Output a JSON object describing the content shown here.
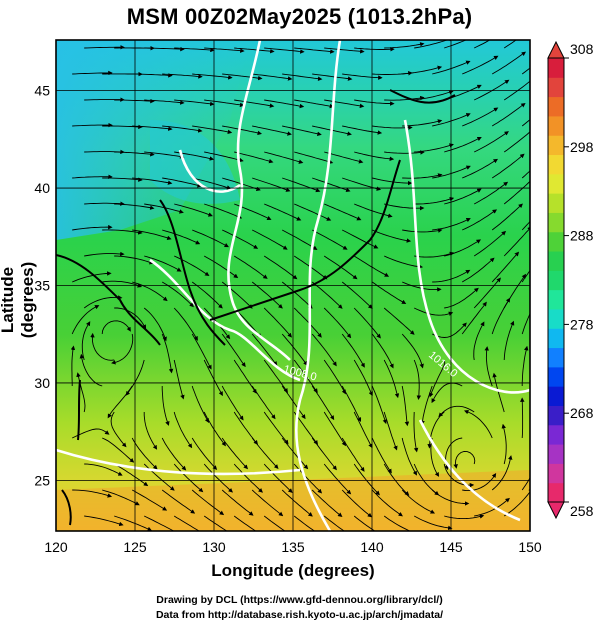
{
  "title": "MSM 00Z02May2025 (1013.2hPa)",
  "xlabel": "Longitude (degrees)",
  "ylabel": "Latitude  (degrees)",
  "credits": [
    "Drawing by DCL (https://www.gfd-dennou.org/library/dcl/)",
    "Data from http://database.rish.kyoto-u.ac.jp/arch/jmadata/"
  ],
  "map": {
    "lon_range": [
      120,
      150
    ],
    "lat_range": [
      22.4,
      47.6
    ],
    "x_ticks": [
      "120",
      "125",
      "130",
      "135",
      "140",
      "145",
      "150"
    ],
    "y_ticks": [
      "25",
      "30",
      "35",
      "40",
      "45"
    ],
    "contour_labels": [
      "1008.0",
      "1016.0"
    ],
    "features": [
      "temperature-shading",
      "wind-streamlines",
      "pressure-contours",
      "coastlines",
      "grid"
    ]
  },
  "colorbar": {
    "ticks": [
      "308",
      "298",
      "288",
      "278",
      "268",
      "258"
    ],
    "colors": [
      "#e7296b",
      "#d0369e",
      "#a633c4",
      "#7a28d4",
      "#3a1ec8",
      "#0a1ad3",
      "#0046f0",
      "#1180ff",
      "#10b8f0",
      "#18dcc8",
      "#20e69a",
      "#20d86c",
      "#28d050",
      "#4ed238",
      "#86da2e",
      "#b6e12a",
      "#e0e832",
      "#f2d932",
      "#f4b82c",
      "#f29226",
      "#ec6c26",
      "#e2443c",
      "#d81e3c"
    ]
  }
}
